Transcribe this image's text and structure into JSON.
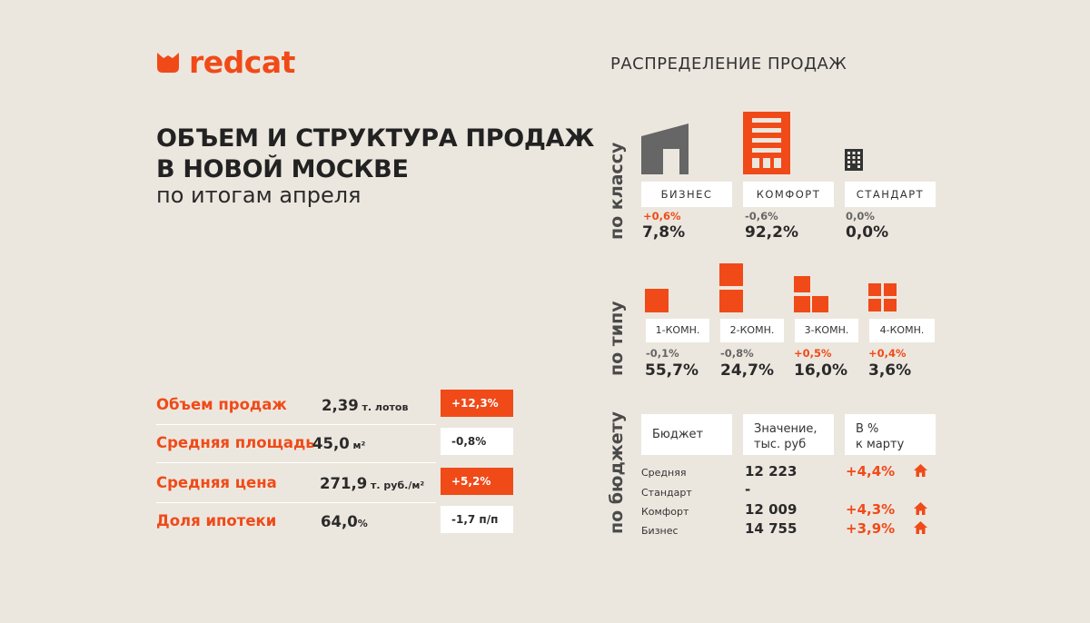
{
  "brand": {
    "name": "redcat",
    "accent": "#f04a19"
  },
  "title": {
    "line1": "ОБЪЕМ И СТРУКТУРА ПРОДАЖ",
    "line2": "В НОВОЙ МОСКВЕ",
    "subtitle": "по итогам апреля"
  },
  "metrics": [
    {
      "label": "Объем продаж",
      "value": "2,39",
      "unit": " т. лотов",
      "change": "+12,3%",
      "positive": true
    },
    {
      "label": "Средняя площадь",
      "value": "45,0",
      "unit": " м²",
      "change": "-0,8%",
      "positive": false
    },
    {
      "label": "Средняя цена",
      "value": "271,9",
      "unit": " т. руб./м²",
      "change": "+5,2%",
      "positive": true
    },
    {
      "label": "Доля ипотеки",
      "value": "64,0",
      "unit": "%",
      "change": "-1,7 п/п",
      "positive": false
    }
  ],
  "distribution": {
    "title": "РАСПРЕДЕЛЕНИЕ ПРОДАЖ",
    "by_class": {
      "label": "по классу",
      "items": [
        {
          "name": "БИЗНЕС",
          "change": "+0,6%",
          "share": "7,8%",
          "positive": true,
          "icon": "business-building-icon"
        },
        {
          "name": "КОМФОРТ",
          "change": "-0,6%",
          "share": "92,2%",
          "positive": false,
          "icon": "comfort-building-icon"
        },
        {
          "name": "СТАНДАРТ",
          "change": "0,0%",
          "share": "0,0%",
          "positive": false,
          "icon": "standard-building-icon"
        }
      ]
    },
    "by_type": {
      "label": "по типу",
      "items": [
        {
          "name": "1-КОМН.",
          "change": "-0,1%",
          "share": "55,7%",
          "positive": false,
          "icon": "one-room-icon"
        },
        {
          "name": "2-КОМН.",
          "change": "-0,8%",
          "share": "24,7%",
          "positive": false,
          "icon": "two-room-icon"
        },
        {
          "name": "3-КОМН.",
          "change": "+0,5%",
          "share": "16,0%",
          "positive": true,
          "icon": "three-room-icon"
        },
        {
          "name": "4-КОМН.",
          "change": "+0,4%",
          "share": "3,6%",
          "positive": true,
          "icon": "four-room-icon"
        }
      ]
    },
    "by_budget": {
      "label": "по бюджету",
      "headers": {
        "col1": "Бюджет",
        "col2_l1": "Значение,",
        "col2_l2": "тыс. руб",
        "col3_l1": "В %",
        "col3_l2": "к марту"
      },
      "rows": [
        {
          "name": "Средняя",
          "value": "12 223",
          "pct": "+4,4%",
          "has_icon": true
        },
        {
          "name": "Стандарт",
          "value": "-",
          "pct": "",
          "has_icon": false
        },
        {
          "name": "Комфорт",
          "value": "12 009",
          "pct": "+4,3%",
          "has_icon": true
        },
        {
          "name": "Бизнес",
          "value": "14 755",
          "pct": "+3,9%",
          "has_icon": true
        }
      ]
    }
  }
}
